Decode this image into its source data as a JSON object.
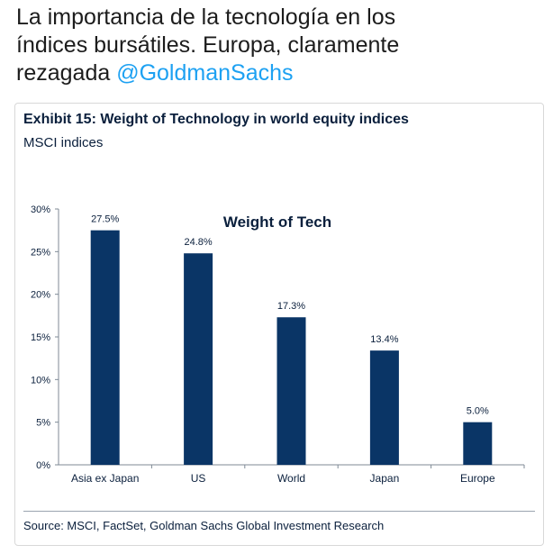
{
  "tweet": {
    "line1": "La importancia de la tecnología en los",
    "line2": "índices bursátiles. Europa, claramente",
    "line3_prefix": "rezagada ",
    "mention": "@GoldmanSachs"
  },
  "exhibit": {
    "title": "Exhibit 15: Weight of Technology in world equity indices",
    "subtitle": "MSCI indices",
    "source": "Source: MSCI, FactSet, Goldman Sachs Global Investment Research"
  },
  "colors": {
    "bar": "#0a3566",
    "axis": "#7f8a96",
    "text": "#0a1f3c"
  },
  "chart_data": {
    "type": "bar",
    "title": "Weight of Tech",
    "xlabel": "",
    "ylabel": "",
    "categories": [
      "Asia ex Japan",
      "US",
      "World",
      "Japan",
      "Europe"
    ],
    "values": [
      27.5,
      24.8,
      17.3,
      13.4,
      5.0
    ],
    "data_labels": [
      "27.5%",
      "24.8%",
      "17.3%",
      "13.4%",
      "5.0%"
    ],
    "ylim": [
      0,
      30
    ],
    "yticks": [
      0,
      5,
      10,
      15,
      20,
      25,
      30
    ],
    "ytick_labels": [
      "0%",
      "5%",
      "10%",
      "15%",
      "20%",
      "25%",
      "30%"
    ],
    "grid": false,
    "legend": "none"
  }
}
